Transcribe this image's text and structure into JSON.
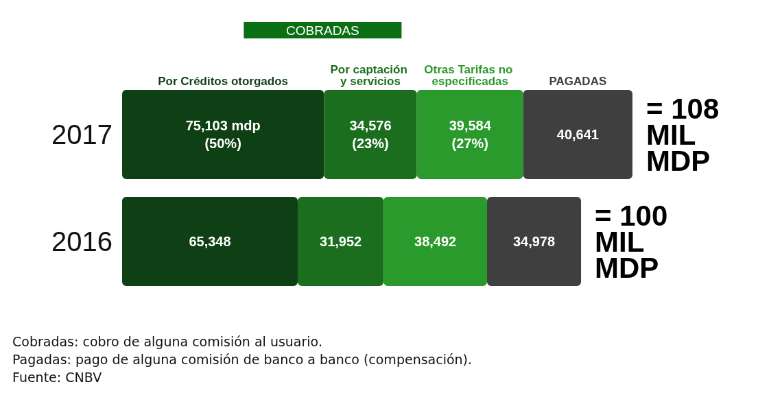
{
  "chart_data": {
    "type": "bar",
    "orientation": "horizontal",
    "stacked": true,
    "categories": [
      "2017",
      "2016"
    ],
    "series": [
      {
        "name": "Por Créditos otorgados",
        "color": "#0f3f14",
        "values": [
          75103,
          65348
        ],
        "value_labels": [
          "75,103 mdp\n(50%)",
          "65,348"
        ]
      },
      {
        "name": "Por captación y servicios",
        "color": "#1c6e1f",
        "values": [
          34576,
          31952
        ],
        "value_labels": [
          "34,576\n(23%)",
          "31,952"
        ]
      },
      {
        "name": "Otras Tarifas no especificadas",
        "color": "#2a9a2c",
        "values": [
          39584,
          38492
        ],
        "value_labels": [
          "39,584\n(27%)",
          "38,492"
        ]
      },
      {
        "name": "PAGADAS",
        "color": "#3f3f3f",
        "values": [
          40641,
          34978
        ],
        "value_labels": [
          "40,641",
          "34,978"
        ]
      }
    ],
    "annotations": [
      "COBRADAS",
      "= 108 MIL MDP",
      "= 100 MIL MDP",
      "Cobradas: cobro de alguna comisión al usuario.",
      "Pagadas: pago de alguna comisión de banco a banco (compensación).",
      "Fuente: CNBV"
    ]
  }
}
